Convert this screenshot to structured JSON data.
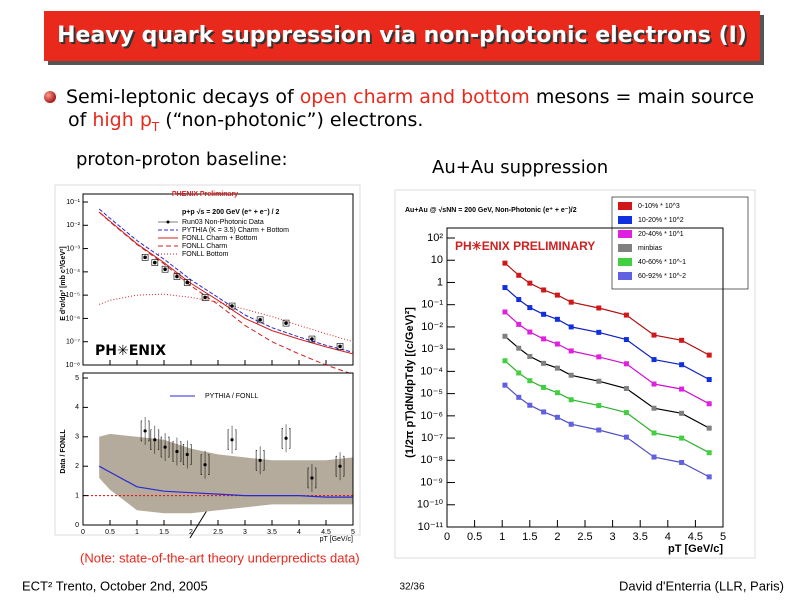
{
  "header": {
    "title": "Heavy quark suppression via non-photonic electrons (I)"
  },
  "bullet": {
    "line1": [
      {
        "text": "Semi-leptonic decays of ",
        "color": "#000000"
      },
      {
        "text": "open charm and bottom",
        "color": "#e8291c"
      },
      {
        "text": " mesons = main source",
        "color": "#000000"
      }
    ],
    "line2": [
      {
        "text": "of ",
        "color": "#000000"
      },
      {
        "text": "high p",
        "color": "#e8291c"
      },
      {
        "text": "T",
        "color": "#e8291c",
        "sub": true
      },
      {
        "text": " (“non-photonic”) electrons.",
        "color": "#000000"
      }
    ]
  },
  "labels": {
    "pp": "proton-proton baseline:",
    "auau": "Au+Au suppression",
    "note": "(Note: state-of-the-art theory underpredicts data)"
  },
  "footer": {
    "left": "ECT² Trento, October 2nd, 2005",
    "page": "32/36",
    "right": "David d'Enterria (LLR, Paris)"
  },
  "pp_plot": {
    "title": "PHENIX Preliminary",
    "logo": "PH✳ENIX",
    "ylabel": "E d³σ/dp³ [mb c³/GeV²]",
    "ylog": true,
    "xlim": [
      0,
      5
    ],
    "ylim": [
      1e-08,
      0.1
    ],
    "yticks": [
      {
        "value": 1e-08,
        "label": "10⁻⁸"
      },
      {
        "value": 1e-07,
        "label": "10⁻⁷"
      },
      {
        "value": 1e-06,
        "label": "10⁻⁶"
      },
      {
        "value": 1e-05,
        "label": "10⁻⁵"
      },
      {
        "value": 0.0001,
        "label": "10⁻⁴"
      },
      {
        "value": 0.001,
        "label": "10⁻³"
      },
      {
        "value": 0.01,
        "label": "10⁻²"
      },
      {
        "value": 0.1,
        "label": "10⁻¹"
      }
    ],
    "legend_title": "p+p √s = 200 GeV (e⁺ + e⁻) / 2",
    "data": {
      "name": "Run03 Non-Photonic Data",
      "color": "#000000",
      "x": [
        1.15,
        1.33,
        1.52,
        1.74,
        1.93,
        2.26,
        2.76,
        3.28,
        3.76,
        4.24,
        4.76
      ],
      "values": [
        0.00042,
        0.00025,
        0.00013,
        6.3e-05,
        3.5e-05,
        8e-06,
        3.4e-06,
        8.7e-07,
        6.3e-07,
        1.3e-07,
        6.3e-08
      ]
    },
    "curves": [
      {
        "name": "PYTHIA (K = 3.5) Charm + Bottom",
        "color": "#2a2ad0",
        "dash": "4 2",
        "values": [
          0.05,
          0.02,
          0.0022,
          0.00035,
          4.5e-05,
          8e-06,
          1.4e-06,
          4e-07,
          1.6e-07,
          7e-08,
          3.5e-08
        ]
      },
      {
        "name": "FONLL Charm + Bottom",
        "color": "#d02020",
        "dash": "none",
        "values": [
          0.037,
          0.015,
          0.0016,
          0.00025,
          3.2e-05,
          6e-06,
          1e-06,
          3e-07,
          1.3e-07,
          6e-08,
          3e-08
        ]
      },
      {
        "name": "FONLL Charm",
        "color": "#d02020",
        "dash": "5 3",
        "values": [
          0.036,
          0.014,
          0.0015,
          0.00022,
          2.5e-05,
          4e-06,
          5e-07,
          1e-07,
          3e-08,
          1e-08,
          4e-09
        ]
      },
      {
        "name": "FONLL Bottom",
        "color": "#d02020",
        "dash": "1 2",
        "values": [
          4e-06,
          6e-06,
          1e-05,
          1.1e-05,
          8e-06,
          5e-06,
          2.5e-06,
          1.2e-06,
          5e-07,
          2.2e-07,
          1e-07
        ]
      }
    ],
    "curve_x": [
      0.3,
      0.5,
      1,
      1.5,
      2,
      2.5,
      3,
      3.5,
      4,
      4.5,
      5
    ],
    "ratio": {
      "ylabel": "Data / FONLL",
      "ylim": [
        0,
        5
      ],
      "yticks": [
        0,
        1,
        2,
        3,
        4,
        5
      ],
      "xticks": [
        0,
        0.5,
        1,
        1.5,
        2,
        2.5,
        3,
        3.5,
        4,
        4.5,
        5
      ],
      "xlabel": "pT [GeV/c]",
      "legend": "PYTHIA / FONLL",
      "line_color": "#2a2ad0",
      "band_color": "#b5ab9c",
      "x": [
        0.3,
        0.5,
        1,
        1.5,
        2,
        2.5,
        3,
        3.5,
        4,
        4.5,
        5
      ],
      "band_upper": [
        3.0,
        3.1,
        3.0,
        2.9,
        2.6,
        2.4,
        2.3,
        2.2,
        2.2,
        2.2,
        2.3
      ],
      "band_lower": [
        1.6,
        1.2,
        0.5,
        0.4,
        0.4,
        0.5,
        0.6,
        0.7,
        0.7,
        0.7,
        0.7
      ],
      "line": [
        2.0,
        1.8,
        1.3,
        1.15,
        1.1,
        1.05,
        1.0,
        1.0,
        1.0,
        0.95,
        0.95
      ],
      "points_x": [
        1.15,
        1.33,
        1.52,
        1.74,
        1.93,
        2.26,
        2.76,
        3.28,
        3.76,
        4.24,
        4.76
      ],
      "points": [
        3.2,
        2.9,
        2.65,
        2.5,
        2.4,
        2.05,
        2.9,
        2.2,
        2.95,
        1.6,
        2.0
      ]
    }
  },
  "auau_plot": {
    "title": "Au+Au @ √sNN = 200 GeV, Non-Photonic (e⁺ + e⁻)/2",
    "watermark": "PH✳ENIX PRELIMINARY",
    "ylabel": "(1/2π pT)dN/dpTdy [(c/GeV)²]",
    "xlabel": "pT [GeV/c]",
    "ylog": true,
    "xlim": [
      0,
      5
    ],
    "ylim": [
      1e-11,
      100
    ],
    "xticks": [
      0,
      0.5,
      1,
      1.5,
      2,
      2.5,
      3,
      3.5,
      4,
      4.5,
      5
    ],
    "yticks": [
      {
        "value": 1e-11,
        "label": "10⁻¹¹"
      },
      {
        "value": 1e-10,
        "label": "10⁻¹⁰"
      },
      {
        "value": 1e-09,
        "label": "10⁻⁹"
      },
      {
        "value": 1e-08,
        "label": "10⁻⁸"
      },
      {
        "value": 1e-07,
        "label": "10⁻⁷"
      },
      {
        "value": 1e-06,
        "label": "10⁻⁶"
      },
      {
        "value": 1e-05,
        "label": "10⁻⁵"
      },
      {
        "value": 0.0001,
        "label": "10⁻⁴"
      },
      {
        "value": 0.001,
        "label": "10⁻³"
      },
      {
        "value": 0.01,
        "label": "10⁻²"
      },
      {
        "value": 0.1,
        "label": "10⁻¹"
      },
      1,
      10,
      {
        "value": 100,
        "label": "10²"
      }
    ],
    "x": [
      1.05,
      1.3,
      1.5,
      1.75,
      2.0,
      2.25,
      2.75,
      3.25,
      3.75,
      4.25,
      4.75
    ],
    "series": [
      {
        "name": "0-10% * 10^3",
        "color": "#d01818",
        "line": "#b01010",
        "values": [
          7.4,
          2.1,
          0.93,
          0.46,
          0.27,
          0.13,
          0.071,
          0.034,
          0.0043,
          0.0025,
          0.00054
        ]
      },
      {
        "name": "10-20% * 10^2",
        "color": "#1030e0",
        "line": "#1020c0",
        "values": [
          0.59,
          0.17,
          0.074,
          0.037,
          0.022,
          0.01,
          0.0057,
          0.0027,
          0.00034,
          0.0002,
          4.3e-05
        ]
      },
      {
        "name": "20-40% * 10^1",
        "color": "#e020e0",
        "line": "#d010d0",
        "values": [
          0.047,
          0.013,
          0.0059,
          0.0029,
          0.0017,
          0.00083,
          0.00045,
          0.00022,
          2.7e-05,
          1.6e-05,
          3.5e-06
        ]
      },
      {
        "name": "minbias",
        "color": "#808080",
        "line": "#000000",
        "values": [
          0.0038,
          0.0011,
          0.00047,
          0.00023,
          0.00014,
          6.7e-05,
          3.6e-05,
          1.7e-05,
          2.2e-06,
          1.3e-06,
          2.8e-07
        ]
      },
      {
        "name": "40-60% * 10^-1",
        "color": "#40d040",
        "line": "#30b030",
        "values": [
          0.0003,
          8.5e-05,
          3.8e-05,
          1.9e-05,
          1.1e-05,
          5.3e-06,
          2.9e-06,
          1.4e-06,
          1.7e-07,
          1e-07,
          2.2e-08
        ]
      },
      {
        "name": "60-92% * 10^-2",
        "color": "#6060e0",
        "line": "#5050c0",
        "values": [
          2.4e-05,
          6.8e-06,
          3e-06,
          1.5e-06,
          8.6e-07,
          4.2e-07,
          2.3e-07,
          1.1e-07,
          1.4e-08,
          8e-09,
          1.8e-09
        ]
      }
    ]
  }
}
